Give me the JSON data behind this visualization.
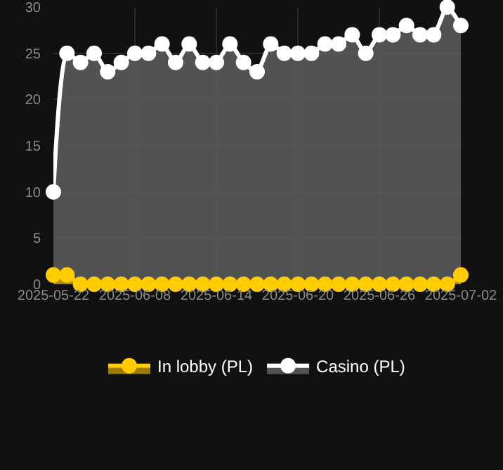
{
  "chart_data": {
    "type": "area",
    "categories": [
      "2025-05-22",
      null,
      null,
      null,
      null,
      null,
      "2025-06-08",
      null,
      null,
      null,
      null,
      null,
      "2025-06-14",
      null,
      null,
      null,
      null,
      null,
      "2025-06-20",
      null,
      null,
      null,
      null,
      null,
      "2025-06-26",
      null,
      null,
      null,
      null,
      null,
      "2025-07-02"
    ],
    "series": [
      {
        "name": "In lobby (PL)",
        "color": "#ffcc00",
        "values": [
          1,
          1,
          0,
          0,
          0,
          0,
          0,
          0,
          0,
          0,
          0,
          0,
          0,
          0,
          0,
          0,
          0,
          0,
          0,
          0,
          0,
          0,
          0,
          0,
          0,
          0,
          0,
          0,
          0,
          0,
          1
        ]
      },
      {
        "name": "Casino (PL)",
        "color": "#ffffff",
        "values": [
          10,
          25,
          24,
          25,
          23,
          24,
          25,
          25,
          26,
          24,
          26,
          24,
          24,
          26,
          24,
          23,
          26,
          25,
          25,
          25,
          26,
          26,
          27,
          25,
          27,
          27,
          28,
          27,
          27,
          30,
          28
        ]
      }
    ],
    "ylim": [
      0,
      30
    ],
    "yticks": [
      0,
      5,
      10,
      15,
      20,
      25,
      30
    ],
    "grid": true,
    "legend": "bottom",
    "marker": "circle",
    "line_style": "solid"
  }
}
